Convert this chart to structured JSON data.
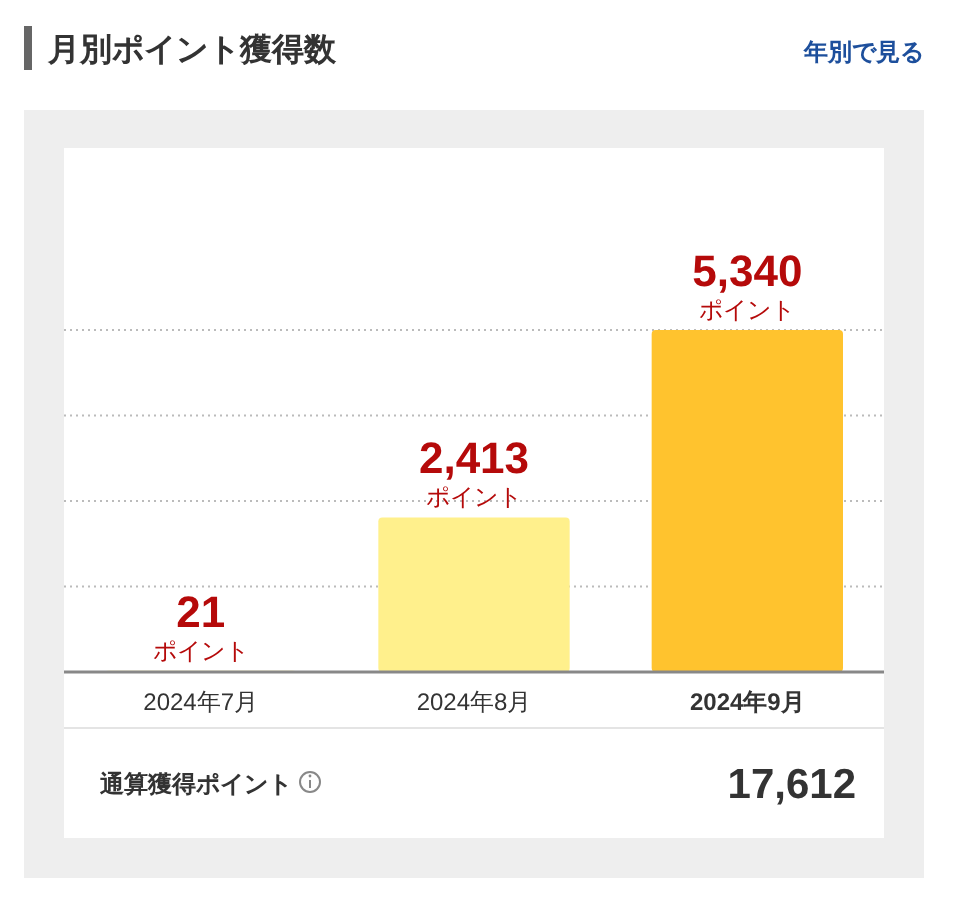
{
  "chart_data": {
    "type": "bar",
    "title": "月別ポイント獲得数",
    "categories": [
      "2024年7月",
      "2024年8月",
      "2024年9月"
    ],
    "values": [
      21,
      2413,
      5340
    ],
    "colors": [
      "#fdef8c",
      "#fff08c",
      "#ffc32e"
    ],
    "value_labels": [
      "21",
      "2,413",
      "5,340"
    ],
    "yticks": [
      {
        "value": 1335,
        "label": null
      },
      {
        "value": 2670,
        "label": null
      },
      {
        "value": 4005,
        "label": null
      },
      {
        "value": 5340,
        "label": null
      }
    ],
    "grid": "y",
    "annotations": [
      "年別で見る",
      "通算獲得ポイント",
      "17,612",
      {
        "text": "ポイント",
        "x": "2024年7月",
        "y": 21
      },
      {
        "text": "ポイント",
        "x": "2024年8月",
        "y": 2413
      },
      {
        "text": "ポイント",
        "x": "2024年9月",
        "y": 5340
      }
    ]
  }
}
